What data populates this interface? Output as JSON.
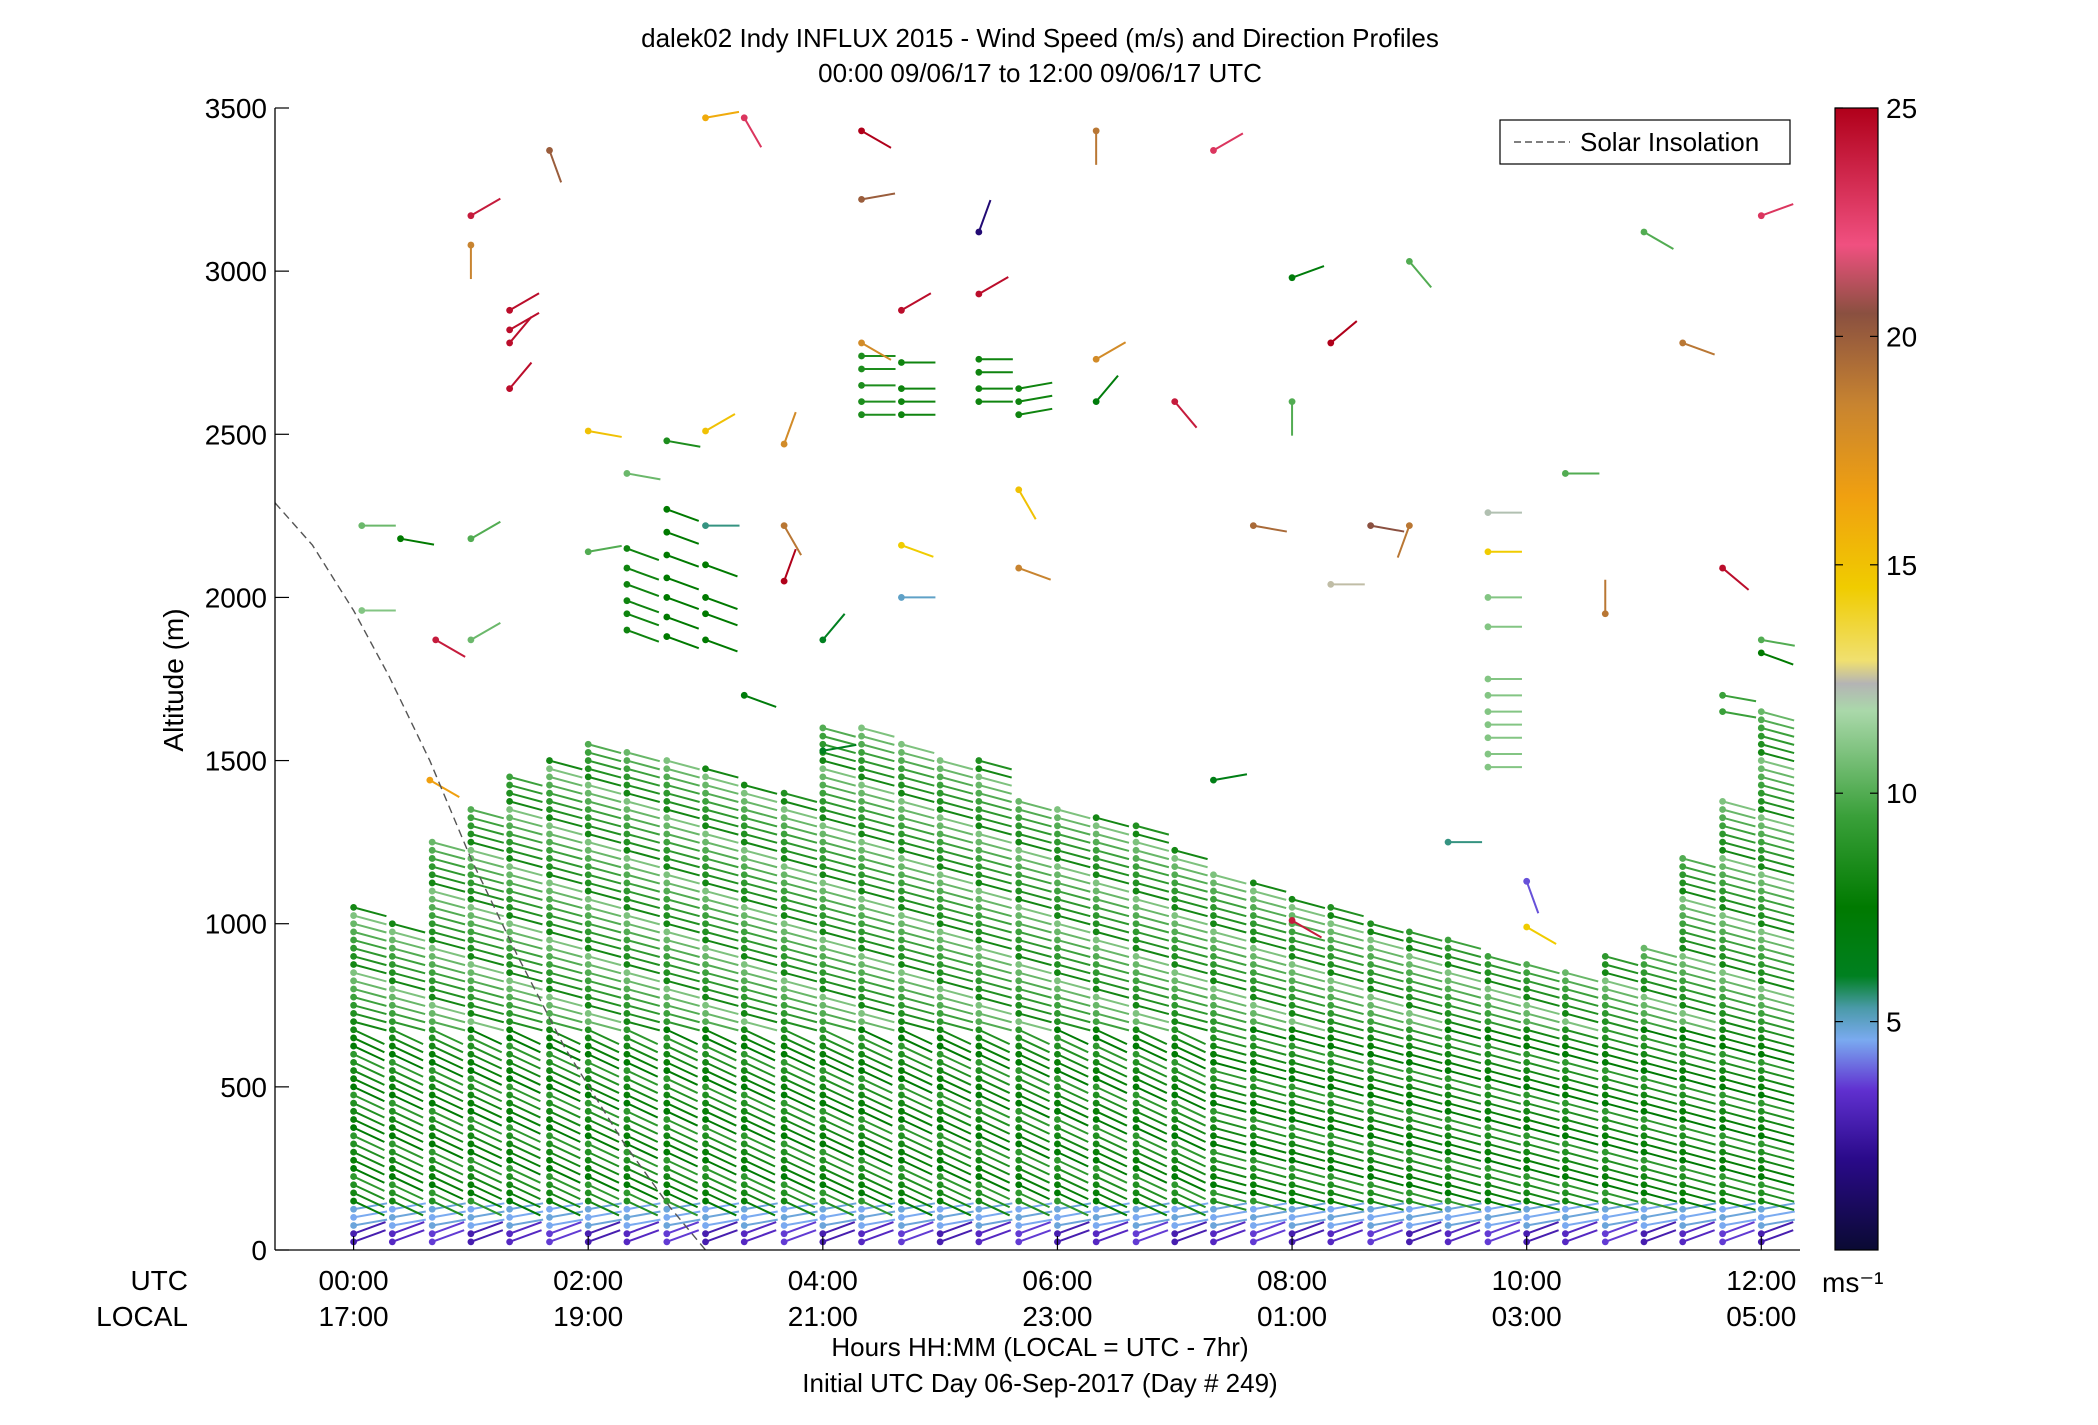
{
  "chart_data": {
    "type": "scatter",
    "title": "dalek02 Indy INFLUX 2015 - Wind Speed (m/s) and Direction Profiles",
    "subtitle": "00:00 09/06/17 to 12:00 09/06/17  UTC",
    "ylabel": "Altitude (m)",
    "xlabel": "Hours HH:MM  (LOCAL = UTC - 7hr)",
    "footer": "Initial UTC Day 06-Sep-2017 (Day # 249)",
    "row_label_utc": "UTC",
    "row_label_local": "LOCAL",
    "xlim_hours": [
      -0.67,
      12.33
    ],
    "ylim": [
      0,
      3500
    ],
    "yticks": [
      0,
      500,
      1000,
      1500,
      2000,
      2500,
      3000,
      3500
    ],
    "ytick_labels": [
      "0",
      "500",
      "1000",
      "1500",
      "2000",
      "2500",
      "3000",
      "3500"
    ],
    "xticks_hours": [
      0,
      2,
      4,
      6,
      8,
      10,
      12
    ],
    "xtick_labels_utc": [
      "00:00",
      "02:00",
      "04:00",
      "06:00",
      "08:00",
      "10:00",
      "12:00"
    ],
    "xtick_labels_local": [
      "17:00",
      "19:00",
      "21:00",
      "23:00",
      "01:00",
      "03:00",
      "05:00"
    ],
    "legend": {
      "position": "top-right",
      "entries": [
        {
          "label": "Solar Insolation",
          "style": "dashed",
          "color": "#555555"
        }
      ]
    },
    "colorbar": {
      "label": "ms⁻¹",
      "range": [
        0,
        25
      ],
      "ticks": [
        5,
        10,
        15,
        20,
        25
      ],
      "tick_labels": [
        "5",
        "10",
        "15",
        "20",
        "25"
      ],
      "stops": [
        {
          "v": 0,
          "c": "#0a0a33"
        },
        {
          "v": 2,
          "c": "#2a0a8a"
        },
        {
          "v": 3.5,
          "c": "#6030d0"
        },
        {
          "v": 4.6,
          "c": "#7aaaf0"
        },
        {
          "v": 5.3,
          "c": "#4a9aa8"
        },
        {
          "v": 6.0,
          "c": "#008020"
        },
        {
          "v": 7.5,
          "c": "#007a00"
        },
        {
          "v": 9.5,
          "c": "#3aa03a"
        },
        {
          "v": 11.8,
          "c": "#aad8aa"
        },
        {
          "v": 12.4,
          "c": "#b4b4b4"
        },
        {
          "v": 12.9,
          "c": "#f0e070"
        },
        {
          "v": 14.5,
          "c": "#f0cc00"
        },
        {
          "v": 16.5,
          "c": "#f0a010"
        },
        {
          "v": 18.5,
          "c": "#c88430"
        },
        {
          "v": 20.5,
          "c": "#8a5040"
        },
        {
          "v": 22,
          "c": "#f05080"
        },
        {
          "v": 25,
          "c": "#b0001a"
        }
      ]
    },
    "solar_insolation": {
      "x_hours": [
        -0.67,
        -0.35,
        0.0,
        0.3,
        0.65,
        1.0,
        1.4,
        1.8,
        2.3,
        2.7,
        3.0
      ],
      "y": [
        2290,
        2160,
        1960,
        1760,
        1500,
        1200,
        900,
        620,
        330,
        130,
        0
      ]
    },
    "profile_times_hours": [
      0.0,
      0.33,
      0.67,
      1.0,
      1.33,
      1.67,
      2.0,
      2.33,
      2.67,
      3.0,
      3.33,
      3.67,
      4.0,
      4.33,
      4.67,
      5.0,
      5.33,
      5.67,
      6.0,
      6.33,
      6.67,
      7.0,
      7.33,
      7.67,
      8.0,
      8.33,
      8.67,
      9.0,
      9.33,
      9.67,
      10.0,
      10.33,
      10.67,
      11.0,
      11.33,
      11.67,
      12.0
    ],
    "profile_tops_m": [
      1050,
      1000,
      1250,
      1350,
      1450,
      1500,
      1550,
      1540,
      1520,
      1480,
      1440,
      1420,
      1620,
      1600,
      1560,
      1500,
      1520,
      1380,
      1370,
      1330,
      1300,
      1240,
      1170,
      1140,
      1080,
      1050,
      1010,
      980,
      950,
      920,
      880,
      850,
      900,
      930,
      1200,
      1380,
      1660
    ],
    "upper_barbs": [
      {
        "t": 0.07,
        "z": 2220,
        "s": 10.5,
        "d": 270
      },
      {
        "t": 0.4,
        "z": 2180,
        "s": 7.5,
        "d": 280
      },
      {
        "t": 0.07,
        "z": 1960,
        "s": 11,
        "d": 270
      },
      {
        "t": 0.7,
        "z": 1870,
        "s": 24,
        "d": 300
      },
      {
        "t": 1.0,
        "z": 2180,
        "s": 10,
        "d": 240
      },
      {
        "t": 1.0,
        "z": 1870,
        "s": 10.5,
        "d": 240
      },
      {
        "t": 0.65,
        "z": 1440,
        "s": 16.5,
        "d": 300
      },
      {
        "t": 1.0,
        "z": 3170,
        "s": 24,
        "d": 240
      },
      {
        "t": 1.0,
        "z": 3080,
        "s": 18.5,
        "d": 0
      },
      {
        "t": 1.33,
        "z": 2880,
        "s": 24.5,
        "d": 240
      },
      {
        "t": 1.33,
        "z": 2820,
        "s": 24.5,
        "d": 240
      },
      {
        "t": 1.33,
        "z": 2780,
        "s": 24.5,
        "d": 220
      },
      {
        "t": 1.33,
        "z": 2640,
        "s": 24.5,
        "d": 220
      },
      {
        "t": 1.67,
        "z": 3370,
        "s": 20,
        "d": 340
      },
      {
        "t": 2.0,
        "z": 2510,
        "s": 15,
        "d": 280
      },
      {
        "t": 2.0,
        "z": 2140,
        "s": 10,
        "d": 260
      },
      {
        "t": 2.33,
        "z": 2380,
        "s": 10.5,
        "d": 280
      },
      {
        "t": 2.67,
        "z": 2480,
        "s": 8.5,
        "d": 280
      },
      {
        "t": 3.0,
        "z": 3470,
        "s": 16,
        "d": 260
      },
      {
        "t": 3.0,
        "z": 2510,
        "s": 15,
        "d": 240
      },
      {
        "t": 3.0,
        "z": 2220,
        "s": 5.5,
        "d": 270
      },
      {
        "t": 3.33,
        "z": 3470,
        "s": 23,
        "d": 330
      },
      {
        "t": 3.67,
        "z": 2220,
        "s": 19,
        "d": 330
      },
      {
        "t": 3.67,
        "z": 2470,
        "s": 18,
        "d": 200
      },
      {
        "t": 3.67,
        "z": 2050,
        "s": 25,
        "d": 200
      },
      {
        "t": 4.0,
        "z": 1870,
        "s": 6,
        "d": 220
      },
      {
        "t": 4.33,
        "z": 2780,
        "s": 18,
        "d": 300
      },
      {
        "t": 4.33,
        "z": 3430,
        "s": 25,
        "d": 300
      },
      {
        "t": 4.33,
        "z": 3220,
        "s": 20,
        "d": 260
      },
      {
        "t": 4.67,
        "z": 2880,
        "s": 24.5,
        "d": 240
      },
      {
        "t": 4.67,
        "z": 2000,
        "s": 5,
        "d": 270
      },
      {
        "t": 4.67,
        "z": 2160,
        "s": 14.5,
        "d": 290
      },
      {
        "t": 5.33,
        "z": 3120,
        "s": 1.5,
        "d": 200
      },
      {
        "t": 5.33,
        "z": 2930,
        "s": 24.5,
        "d": 240
      },
      {
        "t": 5.67,
        "z": 2330,
        "s": 15,
        "d": 330
      },
      {
        "t": 5.67,
        "z": 2090,
        "s": 18.5,
        "d": 290
      },
      {
        "t": 6.33,
        "z": 3430,
        "s": 19,
        "d": 0
      },
      {
        "t": 6.33,
        "z": 2730,
        "s": 18,
        "d": 240
      },
      {
        "t": 6.33,
        "z": 2600,
        "s": 7,
        "d": 220
      },
      {
        "t": 7.0,
        "z": 2600,
        "s": 24,
        "d": 320
      },
      {
        "t": 7.33,
        "z": 3370,
        "s": 23,
        "d": 240
      },
      {
        "t": 7.67,
        "z": 2220,
        "s": 19.5,
        "d": 280
      },
      {
        "t": 8.0,
        "z": 2980,
        "s": 7,
        "d": 250
      },
      {
        "t": 8.0,
        "z": 2600,
        "s": 10,
        "d": 0
      },
      {
        "t": 8.33,
        "z": 2780,
        "s": 25,
        "d": 230
      },
      {
        "t": 8.33,
        "z": 2040,
        "s": 12.5,
        "d": 270
      },
      {
        "t": 8.67,
        "z": 2220,
        "s": 20.5,
        "d": 280
      },
      {
        "t": 9.0,
        "z": 3030,
        "s": 10,
        "d": 320
      },
      {
        "t": 9.0,
        "z": 2220,
        "s": 19,
        "d": 20
      },
      {
        "t": 9.67,
        "z": 2260,
        "s": 12.2,
        "d": 270
      },
      {
        "t": 9.67,
        "z": 2140,
        "s": 14.5,
        "d": 270
      },
      {
        "t": 10.33,
        "z": 2380,
        "s": 10,
        "d": 270
      },
      {
        "t": 10.67,
        "z": 1950,
        "s": 19,
        "d": 180
      },
      {
        "t": 11.0,
        "z": 3120,
        "s": 10,
        "d": 300
      },
      {
        "t": 11.33,
        "z": 2780,
        "s": 19,
        "d": 290
      },
      {
        "t": 11.67,
        "z": 2090,
        "s": 24.5,
        "d": 310
      },
      {
        "t": 12.0,
        "z": 3170,
        "s": 23,
        "d": 250
      },
      {
        "t": 12.0,
        "z": 1870,
        "s": 10,
        "d": 280
      },
      {
        "t": 12.0,
        "z": 1830,
        "s": 7.5,
        "d": 290
      },
      {
        "t": 3.33,
        "z": 1700,
        "s": 7,
        "d": 290
      },
      {
        "t": 4.0,
        "z": 1530,
        "s": 6,
        "d": 260
      },
      {
        "t": 9.33,
        "z": 1250,
        "s": 5.5,
        "d": 270
      },
      {
        "t": 10.0,
        "z": 1130,
        "s": 3.8,
        "d": 340
      },
      {
        "t": 10.0,
        "z": 990,
        "s": 14.5,
        "d": 300
      },
      {
        "t": 8.0,
        "z": 1010,
        "s": 24,
        "d": 300
      },
      {
        "t": 7.33,
        "z": 1440,
        "s": 6.5,
        "d": 260
      }
    ],
    "cluster_barbs": [
      {
        "t": 4.33,
        "zs": [
          2740,
          2700,
          2650,
          2600,
          2560
        ],
        "s": 8.5,
        "d": 270
      },
      {
        "t": 4.67,
        "zs": [
          2720,
          2640,
          2600,
          2560
        ],
        "s": 8,
        "d": 270
      },
      {
        "t": 5.33,
        "zs": [
          2730,
          2690,
          2640,
          2600
        ],
        "s": 8,
        "d": 270
      },
      {
        "t": 5.67,
        "zs": [
          2640,
          2600,
          2560
        ],
        "s": 8,
        "d": 260
      },
      {
        "t": 2.33,
        "zs": [
          2150,
          2090,
          2040,
          1990,
          1950,
          1900
        ],
        "s": 8,
        "d": 290
      },
      {
        "t": 2.67,
        "zs": [
          2270,
          2200,
          2130,
          2060,
          2000,
          1940,
          1880
        ],
        "s": 7.5,
        "d": 290
      },
      {
        "t": 3.0,
        "zs": [
          2100,
          2000,
          1950,
          1870
        ],
        "s": 7.5,
        "d": 290
      },
      {
        "t": 9.67,
        "zs": [
          2000,
          1910,
          1750,
          1700,
          1650,
          1610,
          1570,
          1520,
          1480
        ],
        "s": 11,
        "d": 270
      },
      {
        "t": 11.67,
        "zs": [
          1700,
          1650
        ],
        "s": 9.5,
        "d": 280
      }
    ]
  }
}
